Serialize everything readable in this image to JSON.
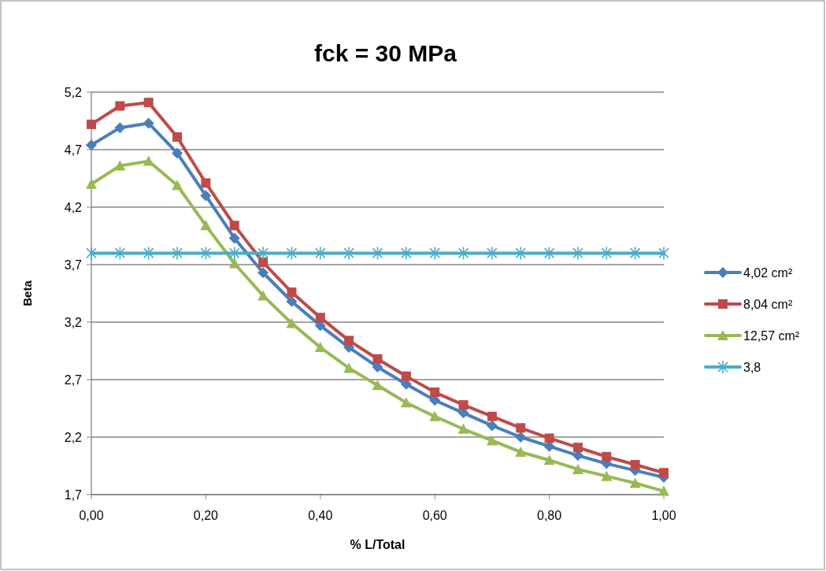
{
  "chart_data": {
    "type": "line",
    "title": "fck = 30 MPa",
    "xlabel": "% L/Total",
    "ylabel": "Beta",
    "x": [
      0,
      0.05,
      0.1,
      0.15,
      0.2,
      0.25,
      0.3,
      0.35,
      0.4,
      0.45,
      0.5,
      0.55,
      0.6,
      0.65,
      0.7,
      0.75,
      0.8,
      0.85,
      0.9,
      0.95,
      1
    ],
    "xlim": [
      0,
      1
    ],
    "xticks": [
      {
        "value": 0,
        "label": "0,00"
      },
      {
        "value": 0.2,
        "label": "0,20"
      },
      {
        "value": 0.4,
        "label": "0,40"
      },
      {
        "value": 0.6,
        "label": "0,60"
      },
      {
        "value": 0.8,
        "label": "0,80"
      },
      {
        "value": 1,
        "label": "1,00"
      }
    ],
    "ylim": [
      1.7,
      5.2
    ],
    "yticks": [
      {
        "value": 1.7,
        "label": "1,7"
      },
      {
        "value": 2.2,
        "label": "2,2"
      },
      {
        "value": 2.7,
        "label": "2,7"
      },
      {
        "value": 3.2,
        "label": "3,2"
      },
      {
        "value": 3.7,
        "label": "3,7"
      },
      {
        "value": 4.2,
        "label": "4,2"
      },
      {
        "value": 4.7,
        "label": "4,7"
      },
      {
        "value": 5.2,
        "label": "5,2"
      }
    ],
    "grid": "y",
    "legend": "right",
    "line_style": "solid",
    "series": [
      {
        "name": "4,02 cm²",
        "color": "#4a7ebb",
        "marker": "diamond",
        "values": [
          4.74,
          4.89,
          4.93,
          4.67,
          4.3,
          3.93,
          3.63,
          3.38,
          3.17,
          2.98,
          2.81,
          2.66,
          2.52,
          2.41,
          2.3,
          2.2,
          2.12,
          2.04,
          1.97,
          1.91,
          1.85
        ]
      },
      {
        "name": "8,04 cm²",
        "color": "#be4b48",
        "marker": "square",
        "values": [
          4.92,
          5.08,
          5.11,
          4.81,
          4.41,
          4.04,
          3.72,
          3.46,
          3.24,
          3.04,
          2.88,
          2.73,
          2.59,
          2.48,
          2.38,
          2.28,
          2.19,
          2.11,
          2.03,
          1.96,
          1.89
        ]
      },
      {
        "name": "12,57 cm²",
        "color": "#98b954",
        "marker": "triangle",
        "values": [
          4.4,
          4.56,
          4.6,
          4.39,
          4.04,
          3.71,
          3.43,
          3.19,
          2.98,
          2.8,
          2.65,
          2.5,
          2.38,
          2.27,
          2.17,
          2.07,
          2,
          1.92,
          1.86,
          1.8,
          1.73
        ]
      },
      {
        "name": "3,8",
        "color": "#4bacc6",
        "marker": "cross",
        "values": [
          3.8,
          3.8,
          3.8,
          3.8,
          3.8,
          3.8,
          3.8,
          3.8,
          3.8,
          3.8,
          3.8,
          3.8,
          3.8,
          3.8,
          3.8,
          3.8,
          3.8,
          3.8,
          3.8,
          3.8,
          3.8
        ]
      }
    ]
  }
}
